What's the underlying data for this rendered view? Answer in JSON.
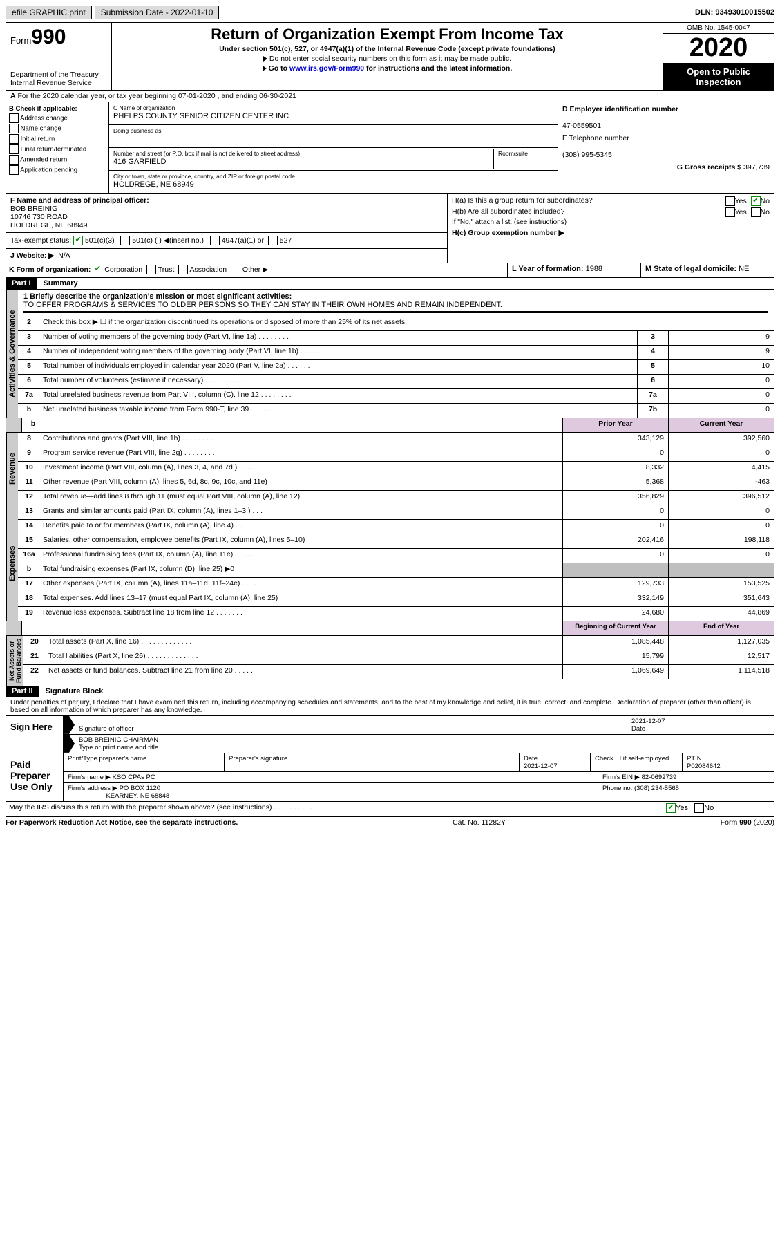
{
  "topbar": {
    "efile_label": "efile GRAPHIC print",
    "submission_label": "Submission Date - 2022-01-10",
    "dln": "DLN: 93493010015502"
  },
  "header": {
    "form_prefix": "Form",
    "form_num": "990",
    "dept": "Department of the Treasury\nInternal Revenue Service",
    "title": "Return of Organization Exempt From Income Tax",
    "sub1": "Under section 501(c), 527, or 4947(a)(1) of the Internal Revenue Code (except private foundations)",
    "sub2": "Do not enter social security numbers on this form as it may be made public.",
    "sub3_pre": "Go to ",
    "sub3_link": "www.irs.gov/Form990",
    "sub3_post": " for instructions and the latest information.",
    "omb": "OMB No. 1545-0047",
    "year": "2020",
    "black": "Open to Public Inspection"
  },
  "period": "For the 2020 calendar year, or tax year beginning 07-01-2020    , and ending 06-30-2021",
  "b": {
    "title": "B Check if applicable:",
    "items": [
      "Address change",
      "Name change",
      "Initial return",
      "Final return/terminated",
      "Amended return",
      "Application pending"
    ]
  },
  "c": {
    "name_lbl": "C Name of organization",
    "name": "PHELPS COUNTY SENIOR CITIZEN CENTER INC",
    "dba_lbl": "Doing business as",
    "dba": "",
    "addr_lbl": "Number and street (or P.O. box if mail is not delivered to street address)",
    "room_lbl": "Room/suite",
    "addr": "416 GARFIELD",
    "city_lbl": "City or town, state or province, country, and ZIP or foreign postal code",
    "city": "HOLDREGE, NE  68949"
  },
  "d": {
    "ein_lbl": "D Employer identification number",
    "ein": "47-0559501",
    "tel_lbl": "E Telephone number",
    "tel": "(308) 995-5345",
    "gross_lbl": "G Gross receipts $",
    "gross": " 397,739"
  },
  "f": {
    "lbl": "F  Name and address of principal officer:",
    "name": "BOB BREINIG",
    "addr1": "10746 730 ROAD",
    "addr2": "HOLDREGE, NE  68949"
  },
  "h": {
    "a": "H(a)  Is this a group return for subordinates?",
    "b": "H(b)  Are all subordinates included?",
    "c_lbl": "H(c)  Group exemption number ▶",
    "note": "If \"No,\" attach a list. (see instructions)"
  },
  "i": {
    "lbl": "Tax-exempt status:",
    "o1": "501(c)(3)",
    "o2": "501(c) (  ) ◀(insert no.)",
    "o3": "4947(a)(1) or",
    "o4": "527"
  },
  "j": {
    "lbl": "J  Website: ▶",
    "val": "N/A"
  },
  "k": {
    "lbl": "K Form of organization:",
    "o1": "Corporation",
    "o2": "Trust",
    "o3": "Association",
    "o4": "Other ▶"
  },
  "l": {
    "lbl": "L Year of formation:",
    "val": "1988"
  },
  "m": {
    "lbl": "M State of legal domicile:",
    "val": "NE"
  },
  "part1": {
    "hdr": "Part I",
    "title": "Summary",
    "l1_lbl": "1  Briefly describe the organization's mission or most significant activities:",
    "l1_val": "TO OFFER PROGRAMS & SERVICES TO OLDER PERSONS SO THEY CAN STAY IN THEIR OWN HOMES AND REMAIN INDEPENDENT.",
    "l2": "Check this box ▶ ☐  if the organization discontinued its operations or disposed of more than 25% of its net assets.",
    "rows_a": [
      {
        "n": "3",
        "d": "Number of voting members of the governing body (Part VI, line 1a)   .    .    .    .    .    .    .    .",
        "b": "3",
        "v": "9"
      },
      {
        "n": "4",
        "d": "Number of independent voting members of the governing body (Part VI, line 1b)   .    .    .    .    .",
        "b": "4",
        "v": "9"
      },
      {
        "n": "5",
        "d": "Total number of individuals employed in calendar year 2020 (Part V, line 2a)   .    .    .    .    .    .",
        "b": "5",
        "v": "10"
      },
      {
        "n": "6",
        "d": "Total number of volunteers (estimate if necessary)   .    .    .    .    .    .    .    .    .    .    .    .",
        "b": "6",
        "v": "0"
      },
      {
        "n": "7a",
        "d": "Total unrelated business revenue from Part VIII, column (C), line 12   .    .    .    .    .    .    .    .",
        "b": "7a",
        "v": "0"
      },
      {
        "n": "b",
        "d": "Net unrelated business taxable income from Form 990-T, line 39    .    .    .    .    .    .    .    .",
        "b": "7b",
        "v": "0"
      }
    ],
    "year_hdr": {
      "prior": "Prior Year",
      "current": "Current Year"
    },
    "rows_r": [
      {
        "n": "8",
        "d": "Contributions and grants (Part VIII, line 1h)   .    .    .    .    .    .    .    .",
        "p": "343,129",
        "c": "392,560"
      },
      {
        "n": "9",
        "d": "Program service revenue (Part VIII, line 2g)    .    .    .    .    .    .    .    .",
        "p": "0",
        "c": "0"
      },
      {
        "n": "10",
        "d": "Investment income (Part VIII, column (A), lines 3, 4, and 7d )   .    .    .    .",
        "p": "8,332",
        "c": "4,415"
      },
      {
        "n": "11",
        "d": "Other revenue (Part VIII, column (A), lines 5, 6d, 8c, 9c, 10c, and 11e)",
        "p": "5,368",
        "c": "-463"
      },
      {
        "n": "12",
        "d": "Total revenue—add lines 8 through 11 (must equal Part VIII, column (A), line 12)",
        "p": "356,829",
        "c": "396,512"
      }
    ],
    "rows_e": [
      {
        "n": "13",
        "d": "Grants and similar amounts paid (Part IX, column (A), lines 1–3 )   .    .    .",
        "p": "0",
        "c": "0"
      },
      {
        "n": "14",
        "d": "Benefits paid to or for members (Part IX, column (A), line 4)   .    .    .    .",
        "p": "0",
        "c": "0"
      },
      {
        "n": "15",
        "d": "Salaries, other compensation, employee benefits (Part IX, column (A), lines 5–10)",
        "p": "202,416",
        "c": "198,118"
      },
      {
        "n": "16a",
        "d": "Professional fundraising fees (Part IX, column (A), line 11e)   .    .    .    .    .",
        "p": "0",
        "c": "0"
      },
      {
        "n": "b",
        "d": "Total fundraising expenses (Part IX, column (D), line 25) ▶0",
        "p": "",
        "c": "",
        "shade": true
      },
      {
        "n": "17",
        "d": "Other expenses (Part IX, column (A), lines 11a–11d, 11f–24e)   .    .    .    .",
        "p": "129,733",
        "c": "153,525"
      },
      {
        "n": "18",
        "d": "Total expenses. Add lines 13–17 (must equal Part IX, column (A), line 25)",
        "p": "332,149",
        "c": "351,643"
      },
      {
        "n": "19",
        "d": "Revenue less expenses. Subtract line 18 from line 12   .    .    .    .    .    .    .",
        "p": "24,680",
        "c": "44,869"
      }
    ],
    "na_hdr": {
      "prior": "Beginning of Current Year",
      "current": "End of Year"
    },
    "rows_n": [
      {
        "n": "20",
        "d": "Total assets (Part X, line 16)   .    .    .    .    .    .    .    .    .    .    .    .    .",
        "p": "1,085,448",
        "c": "1,127,035"
      },
      {
        "n": "21",
        "d": "Total liabilities (Part X, line 26)   .    .    .    .    .    .    .    .    .    .    .    .    .",
        "p": "15,799",
        "c": "12,517"
      },
      {
        "n": "22",
        "d": "Net assets or fund balances. Subtract line 21 from line 20   .    .    .    .    .",
        "p": "1,069,649",
        "c": "1,114,518"
      }
    ]
  },
  "sides": {
    "ag": "Activities & Governance",
    "rev": "Revenue",
    "exp": "Expenses",
    "na": "Net Assets or\nFund Balances"
  },
  "part2": {
    "hdr": "Part II",
    "title": "Signature Block",
    "decl": "Under penalties of perjury, I declare that I have examined this return, including accompanying schedules and statements, and to the best of my knowledge and belief, it is true, correct, and complete. Declaration of preparer (other than officer) is based on all information of which preparer has any knowledge.",
    "sign_here": "Sign Here",
    "sig_date": "2021-12-07",
    "sig_lbl": "Signature of officer",
    "date_lbl": "Date",
    "sig_name": "BOB BREINIG CHAIRMAN",
    "sig_name_lbl": "Type or print name and title",
    "paid": "Paid Preparer Use Only",
    "prep_name_lbl": "Print/Type preparer's name",
    "prep_sig_lbl": "Preparer's signature",
    "prep_date_lbl": "Date",
    "prep_date": "2021-12-07",
    "self_emp": "Check ☐ if self-employed",
    "ptin_lbl": "PTIN",
    "ptin": "P02084642",
    "firm_name_lbl": "Firm's name    ▶",
    "firm_name": "KSO CPAs PC",
    "firm_ein_lbl": "Firm's EIN ▶",
    "firm_ein": "82-0692739",
    "firm_addr_lbl": "Firm's address ▶",
    "firm_addr": "PO BOX 1120",
    "firm_city": "KEARNEY, NE  68848",
    "firm_phone_lbl": "Phone no.",
    "firm_phone": "(308) 234-5565",
    "discuss": "May the IRS discuss this return with the preparer shown above? (see instructions)    .    .    .    .    .    .    .    .    .    ."
  },
  "footer": {
    "left": "For Paperwork Reduction Act Notice, see the separate instructions.",
    "mid": "Cat. No. 11282Y",
    "right": "Form 990 (2020)"
  }
}
